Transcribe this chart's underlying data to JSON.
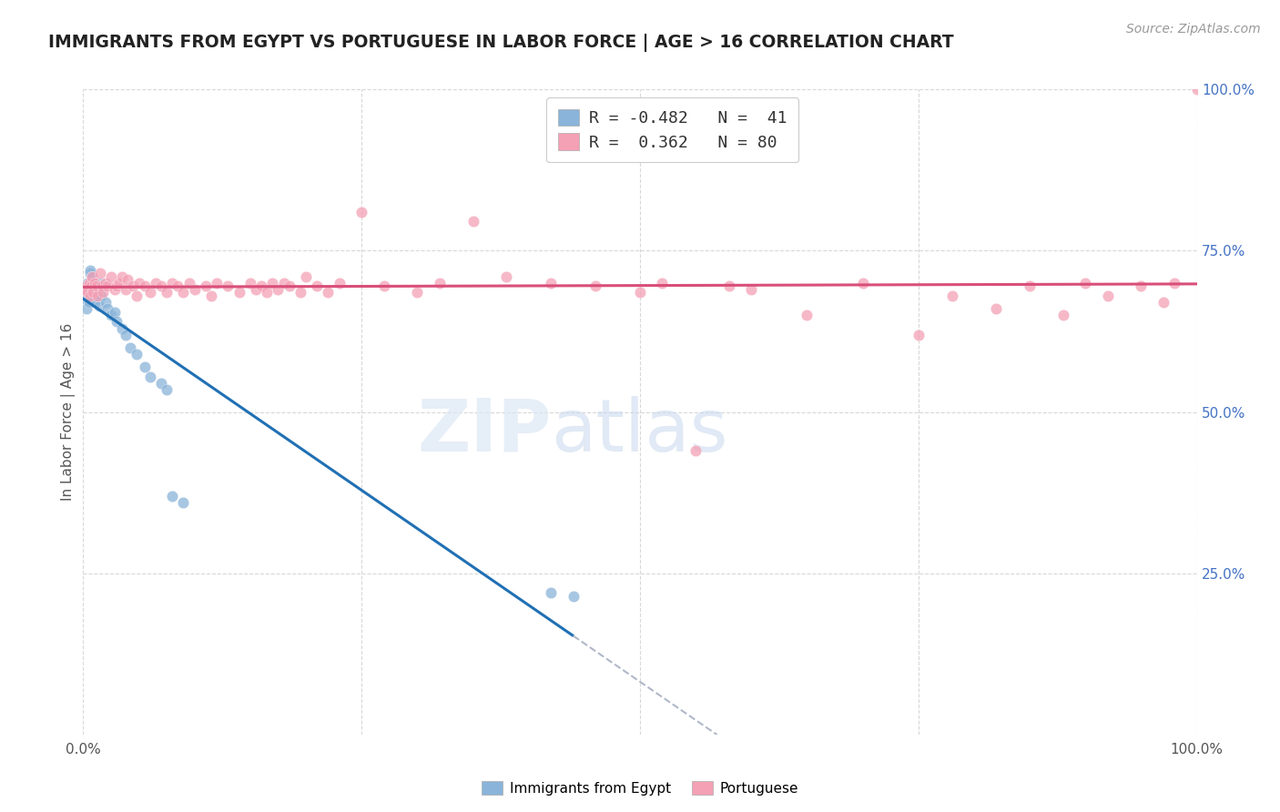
{
  "title": "IMMIGRANTS FROM EGYPT VS PORTUGUESE IN LABOR FORCE | AGE > 16 CORRELATION CHART",
  "source_text": "Source: ZipAtlas.com",
  "ylabel": "In Labor Force | Age > 16",
  "right_yticks": [
    "100.0%",
    "75.0%",
    "50.0%",
    "25.0%"
  ],
  "right_ytick_vals": [
    1.0,
    0.75,
    0.5,
    0.25
  ],
  "watermark_zip": "ZIP",
  "watermark_atlas": "atlas",
  "legend_line1": "R = -0.482   N =  41",
  "legend_line2": "R =  0.362   N = 80",
  "egypt_scatter_x": [
    0.002,
    0.003,
    0.003,
    0.004,
    0.004,
    0.005,
    0.005,
    0.005,
    0.006,
    0.006,
    0.007,
    0.007,
    0.008,
    0.008,
    0.009,
    0.01,
    0.01,
    0.011,
    0.012,
    0.013,
    0.014,
    0.015,
    0.016,
    0.018,
    0.02,
    0.022,
    0.025,
    0.028,
    0.03,
    0.035,
    0.038,
    0.042,
    0.048,
    0.055,
    0.06,
    0.07,
    0.075,
    0.08,
    0.09,
    0.42,
    0.44
  ],
  "egypt_scatter_y": [
    0.685,
    0.675,
    0.66,
    0.7,
    0.69,
    0.695,
    0.68,
    0.67,
    0.715,
    0.72,
    0.7,
    0.69,
    0.71,
    0.68,
    0.675,
    0.69,
    0.67,
    0.685,
    0.695,
    0.68,
    0.665,
    0.7,
    0.68,
    0.695,
    0.67,
    0.66,
    0.65,
    0.655,
    0.64,
    0.63,
    0.62,
    0.6,
    0.59,
    0.57,
    0.555,
    0.545,
    0.535,
    0.37,
    0.36,
    0.22,
    0.215
  ],
  "portuguese_scatter_x": [
    0.002,
    0.003,
    0.004,
    0.005,
    0.006,
    0.007,
    0.008,
    0.009,
    0.01,
    0.012,
    0.013,
    0.015,
    0.017,
    0.018,
    0.02,
    0.022,
    0.025,
    0.028,
    0.03,
    0.032,
    0.035,
    0.038,
    0.04,
    0.045,
    0.048,
    0.05,
    0.055,
    0.06,
    0.065,
    0.07,
    0.075,
    0.08,
    0.085,
    0.09,
    0.095,
    0.1,
    0.11,
    0.115,
    0.12,
    0.13,
    0.14,
    0.15,
    0.155,
    0.16,
    0.165,
    0.17,
    0.175,
    0.18,
    0.185,
    0.195,
    0.2,
    0.21,
    0.22,
    0.23,
    0.25,
    0.27,
    0.3,
    0.32,
    0.35,
    0.38,
    0.42,
    0.46,
    0.5,
    0.52,
    0.55,
    0.58,
    0.6,
    0.65,
    0.7,
    0.75,
    0.78,
    0.82,
    0.85,
    0.88,
    0.9,
    0.92,
    0.95,
    0.97,
    0.98,
    1.0
  ],
  "portuguese_scatter_y": [
    0.69,
    0.695,
    0.685,
    0.7,
    0.68,
    0.695,
    0.71,
    0.685,
    0.7,
    0.695,
    0.68,
    0.715,
    0.695,
    0.685,
    0.7,
    0.695,
    0.71,
    0.69,
    0.695,
    0.7,
    0.71,
    0.69,
    0.705,
    0.695,
    0.68,
    0.7,
    0.695,
    0.685,
    0.7,
    0.695,
    0.685,
    0.7,
    0.695,
    0.685,
    0.7,
    0.69,
    0.695,
    0.68,
    0.7,
    0.695,
    0.685,
    0.7,
    0.69,
    0.695,
    0.685,
    0.7,
    0.69,
    0.7,
    0.695,
    0.685,
    0.71,
    0.695,
    0.685,
    0.7,
    0.81,
    0.695,
    0.685,
    0.7,
    0.795,
    0.71,
    0.7,
    0.695,
    0.685,
    0.7,
    0.44,
    0.695,
    0.69,
    0.65,
    0.7,
    0.62,
    0.68,
    0.66,
    0.695,
    0.65,
    0.7,
    0.68,
    0.695,
    0.67,
    0.7,
    1.0
  ],
  "egypt_color": "#8ab4d9",
  "portuguese_color": "#f4a0b5",
  "egypt_line_color": "#2070b4",
  "portuguese_line_color": "#d94f7a",
  "dashed_line_color": "#b0b8c8",
  "background_color": "#ffffff",
  "grid_color": "#d8d8d8",
  "title_color": "#222222",
  "right_axis_color": "#4472c4",
  "title_fontsize": 13.5,
  "source_fontsize": 10
}
